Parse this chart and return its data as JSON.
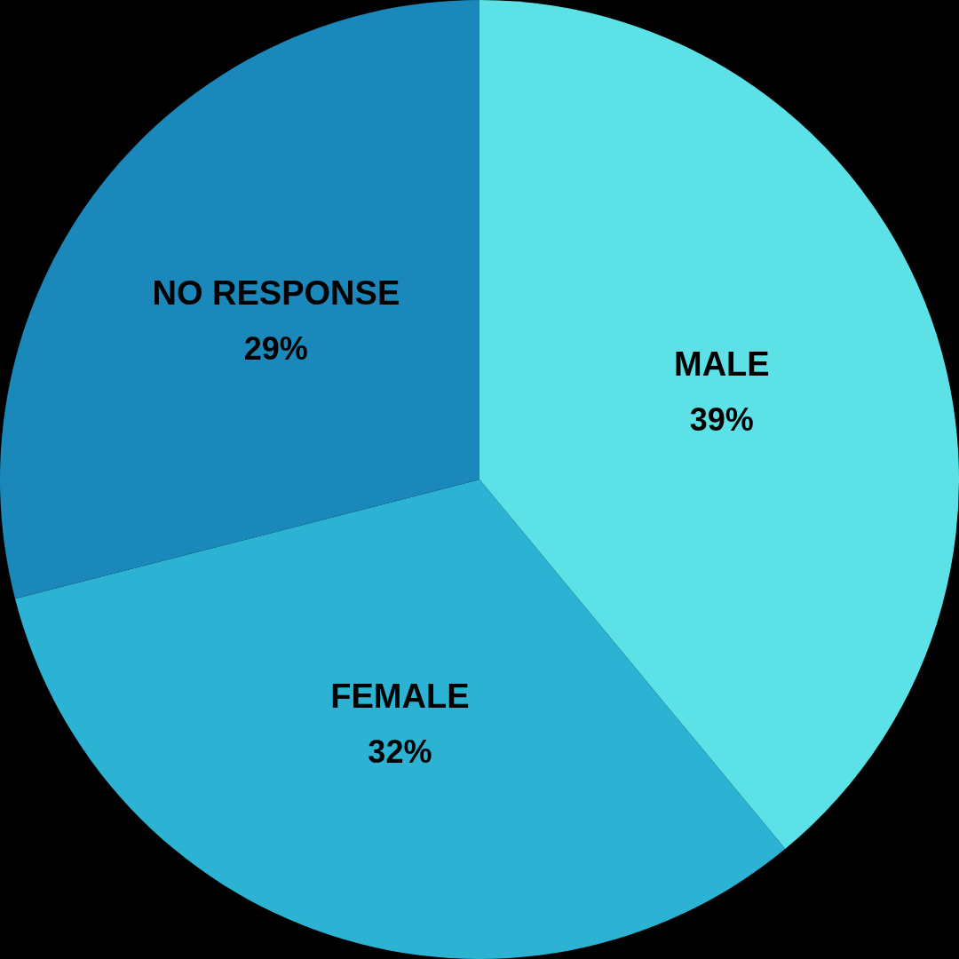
{
  "chart_data": {
    "type": "pie",
    "categories": [
      "MALE",
      "FEMALE",
      "NO RESPONSE"
    ],
    "values": [
      39,
      32,
      29
    ],
    "colors": [
      "#5ce1e6",
      "#2cb3d4",
      "#1a88ba"
    ],
    "value_labels": [
      "39%",
      "32%",
      "29%"
    ],
    "legend": false
  }
}
